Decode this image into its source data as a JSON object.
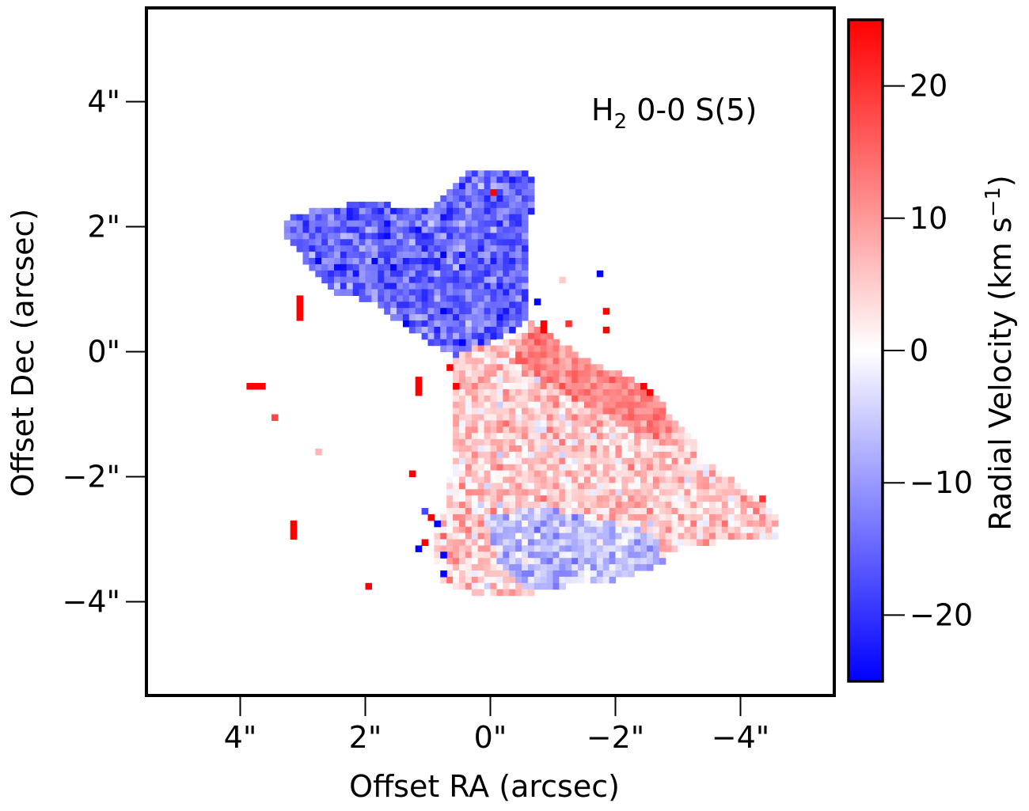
{
  "chart_data": {
    "type": "heatmap",
    "annotation": {
      "species": "H",
      "subscript": "2",
      "transition": " 0-0 S(5)"
    },
    "xlabel": "Offset RA (arcsec)",
    "ylabel": "Offset Dec (arcsec)",
    "xlim": [
      5.5,
      -5.5
    ],
    "ylim": [
      -5.5,
      5.5
    ],
    "xticks": [
      4,
      2,
      0,
      -2,
      -4
    ],
    "xtick_labels": [
      "4\"",
      "2\"",
      "0\"",
      "−2\"",
      "−4\""
    ],
    "yticks": [
      4,
      2,
      0,
      -2,
      -4
    ],
    "ytick_labels": [
      "4\"",
      "2\"",
      "0\"",
      "−2\"",
      "−4\""
    ],
    "pixel_scale_arcsec": 0.1,
    "colorbar": {
      "label_main": "Radial Velocity (km s",
      "label_exp": "−1",
      "label_close": ")",
      "vmin": -25,
      "vmax": 25,
      "colormap": "bwr",
      "ticks": [
        20,
        10,
        0,
        -10,
        -20
      ],
      "tick_labels": [
        "20",
        "10",
        "0",
        "−10",
        "−20"
      ]
    },
    "colors": {
      "low": "#0000ff",
      "mid": "#ffffff",
      "high": "#ff0000",
      "frame": "#000000"
    },
    "regions": [
      {
        "name": "blue NE lobe",
        "polygon": [
          [
            3.3,
            2.1
          ],
          [
            2.8,
            2.3
          ],
          [
            1.8,
            2.4
          ],
          [
            1.4,
            2.3
          ],
          [
            1.0,
            2.3
          ],
          [
            0.6,
            2.6
          ],
          [
            0.4,
            2.9
          ],
          [
            0,
            2.9
          ],
          [
            -0.5,
            2.9
          ],
          [
            -0.75,
            2.7
          ],
          [
            -0.6,
            2.0
          ],
          [
            -0.65,
            1.0
          ],
          [
            -0.6,
            0.5
          ],
          [
            -0.3,
            0.3
          ],
          [
            0.2,
            0.0
          ],
          [
            0.5,
            -0.1
          ],
          [
            0.9,
            0.1
          ],
          [
            1.5,
            0.5
          ],
          [
            1.8,
            0.8
          ],
          [
            2.5,
            0.9
          ],
          [
            3.0,
            1.5
          ],
          [
            3.3,
            1.8
          ]
        ],
        "mean_velocity": -15,
        "scatter": 6
      },
      {
        "name": "red SW lobe",
        "polygon": [
          [
            0.5,
            0.0
          ],
          [
            0.0,
            0.1
          ],
          [
            -0.6,
            0.3
          ],
          [
            -1.0,
            0.1
          ],
          [
            -1.6,
            -0.2
          ],
          [
            -2.2,
            -0.6
          ],
          [
            -2.8,
            -0.9
          ],
          [
            -3.3,
            -1.5
          ],
          [
            -3.8,
            -2.0
          ],
          [
            -4.2,
            -2.3
          ],
          [
            -4.6,
            -2.6
          ],
          [
            -4.65,
            -3.0
          ],
          [
            -4.0,
            -3.0
          ],
          [
            -3.3,
            -3.1
          ],
          [
            -2.6,
            -3.3
          ],
          [
            -2.0,
            -3.4
          ],
          [
            -1.5,
            -3.7
          ],
          [
            -0.5,
            -3.9
          ],
          [
            0.3,
            -3.85
          ],
          [
            0.8,
            -3.7
          ],
          [
            0.9,
            -3.0
          ],
          [
            0.75,
            -2.6
          ],
          [
            0.55,
            -1.5
          ],
          [
            0.6,
            -0.6
          ],
          [
            0.6,
            -0.2
          ]
        ],
        "mean_velocity": 5,
        "scatter": 6
      },
      {
        "name": "blue southern core",
        "polygon": [
          [
            0.1,
            -2.6
          ],
          [
            -0.9,
            -2.5
          ],
          [
            -2.6,
            -2.9
          ],
          [
            -2.8,
            -3.4
          ],
          [
            -1.8,
            -3.7
          ],
          [
            -0.6,
            -3.8
          ],
          [
            -0.2,
            -3.5
          ]
        ],
        "mean_velocity": -6,
        "scatter": 5
      },
      {
        "name": "red eastern rim",
        "polygon": [
          [
            -0.6,
            0.5
          ],
          [
            -1.5,
            -0.1
          ],
          [
            -2.6,
            -0.6
          ],
          [
            -3.0,
            -1.2
          ],
          [
            -2.5,
            -1.4
          ],
          [
            -1.4,
            -0.8
          ],
          [
            -0.4,
            -0.2
          ]
        ],
        "mean_velocity": 12,
        "scatter": 4
      }
    ],
    "isolated_pixels": [
      {
        "ra": 3.05,
        "dec": 0.85,
        "v": 25
      },
      {
        "ra": 3.05,
        "dec": 0.75,
        "v": 25
      },
      {
        "ra": 3.05,
        "dec": 0.65,
        "v": 25
      },
      {
        "ra": 3.05,
        "dec": 0.55,
        "v": 25
      },
      {
        "ra": 3.85,
        "dec": -0.55,
        "v": 25
      },
      {
        "ra": 3.75,
        "dec": -0.55,
        "v": 25
      },
      {
        "ra": 3.65,
        "dec": -0.55,
        "v": 25
      },
      {
        "ra": 3.45,
        "dec": -1.05,
        "v": 18
      },
      {
        "ra": 2.75,
        "dec": -1.6,
        "v": 7
      },
      {
        "ra": 1.25,
        "dec": -1.95,
        "v": 25
      },
      {
        "ra": 3.15,
        "dec": -2.75,
        "v": 25
      },
      {
        "ra": 3.15,
        "dec": -2.85,
        "v": 25
      },
      {
        "ra": 3.15,
        "dec": -2.95,
        "v": 25
      },
      {
        "ra": 1.95,
        "dec": -3.75,
        "v": 25
      },
      {
        "ra": 1.15,
        "dec": -0.45,
        "v": 25
      },
      {
        "ra": 1.15,
        "dec": -0.55,
        "v": 25
      },
      {
        "ra": 1.15,
        "dec": -0.65,
        "v": 25
      },
      {
        "ra": 1.05,
        "dec": -2.55,
        "v": -18
      },
      {
        "ra": 0.95,
        "dec": -2.65,
        "v": 25
      },
      {
        "ra": 0.85,
        "dec": -2.75,
        "v": -25
      },
      {
        "ra": 1.05,
        "dec": -3.05,
        "v": 25
      },
      {
        "ra": 1.15,
        "dec": -3.15,
        "v": -25
      },
      {
        "ra": 0.75,
        "dec": -3.25,
        "v": -25
      },
      {
        "ra": 0.75,
        "dec": -3.55,
        "v": -25
      },
      {
        "ra": 0.65,
        "dec": -0.25,
        "v": 25
      },
      {
        "ra": 0.55,
        "dec": -0.55,
        "v": 25
      },
      {
        "ra": -1.75,
        "dec": 1.25,
        "v": -25
      },
      {
        "ra": -1.85,
        "dec": 0.65,
        "v": 25
      },
      {
        "ra": -1.85,
        "dec": 0.35,
        "v": 25
      },
      {
        "ra": -1.15,
        "dec": 1.15,
        "v": 5
      },
      {
        "ra": -1.25,
        "dec": 0.45,
        "v": 20
      },
      {
        "ra": -0.75,
        "dec": 0.8,
        "v": -25
      },
      {
        "ra": -0.85,
        "dec": 0.35,
        "v": 25
      },
      {
        "ra": -0.85,
        "dec": 0.45,
        "v": 25
      },
      {
        "ra": -2.45,
        "dec": -0.55,
        "v": 25
      },
      {
        "ra": -2.55,
        "dec": -0.65,
        "v": 25
      },
      {
        "ra": -4.35,
        "dec": -2.35,
        "v": 20
      },
      {
        "ra": -0.05,
        "dec": 2.55,
        "v": 25
      },
      {
        "ra": 0.45,
        "dec": 0.15,
        "v": -25
      }
    ]
  }
}
